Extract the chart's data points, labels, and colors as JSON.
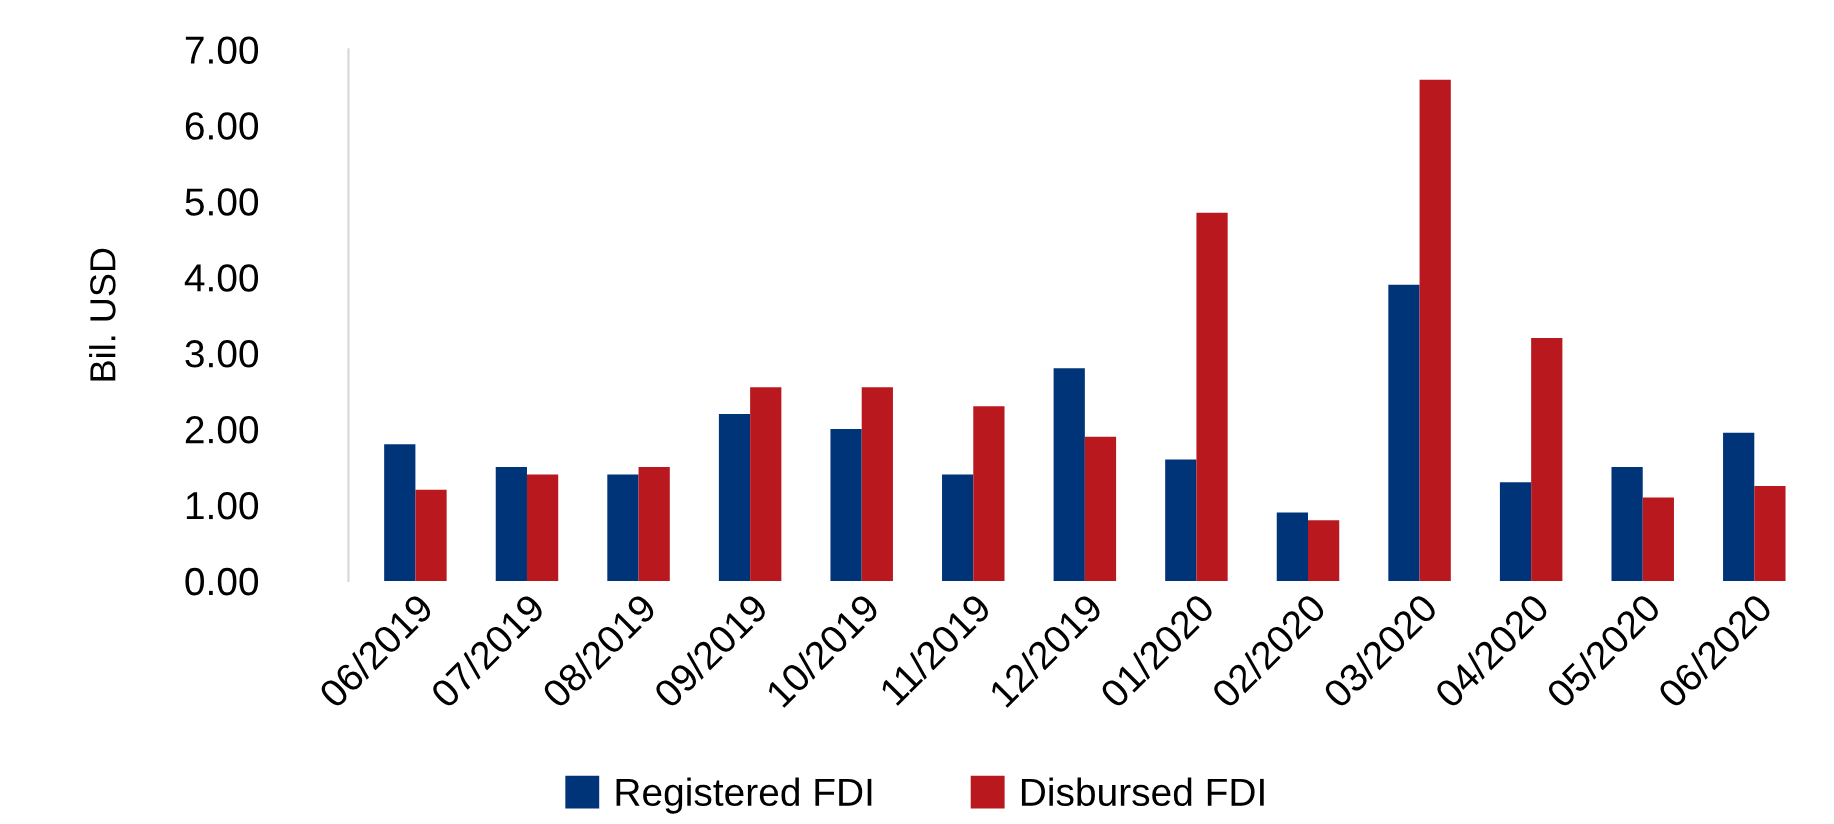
{
  "chart_data": {
    "type": "bar",
    "ylabel": "Bil. USD",
    "categories": [
      "06/2019",
      "07/2019",
      "08/2019",
      "09/2019",
      "10/2019",
      "11/2019",
      "12/2019",
      "01/2020",
      "02/2020",
      "03/2020",
      "04/2020",
      "05/2020",
      "06/2020"
    ],
    "series": [
      {
        "name": "Registered FDI",
        "color": "#003479",
        "values": [
          1.8,
          1.5,
          1.4,
          2.2,
          2.0,
          1.4,
          2.8,
          1.6,
          0.9,
          3.9,
          1.3,
          1.5,
          1.95
        ]
      },
      {
        "name": "Disbursed FDI",
        "color": "#ba181f",
        "values": [
          1.2,
          1.4,
          1.5,
          2.55,
          2.55,
          2.3,
          1.9,
          4.85,
          0.8,
          6.6,
          3.2,
          1.1,
          1.25
        ]
      }
    ],
    "ylim": [
      0,
      7
    ],
    "yticks": [
      {
        "value": 0,
        "label": "0.00"
      },
      {
        "value": 1,
        "label": "1.00"
      },
      {
        "value": 2,
        "label": "2.00"
      },
      {
        "value": 3,
        "label": "3.00"
      },
      {
        "value": 4,
        "label": "4.00"
      },
      {
        "value": 5,
        "label": "5.00"
      },
      {
        "value": 6,
        "label": "6.00"
      },
      {
        "value": 7,
        "label": "7.00"
      }
    ],
    "grid": false,
    "legend": "bottom"
  }
}
